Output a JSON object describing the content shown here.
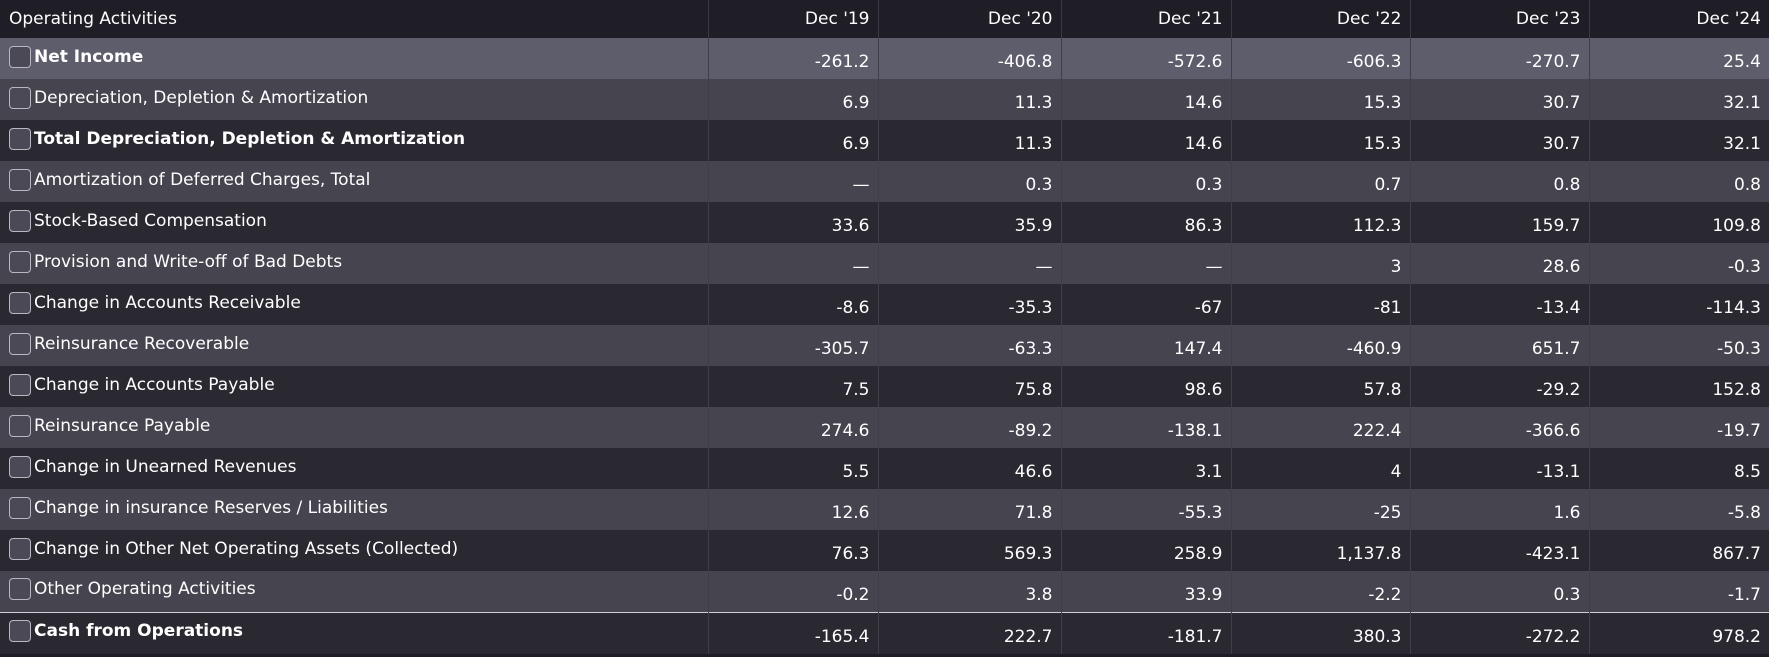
{
  "header": {
    "section_title": "Operating Activities",
    "periods": [
      "Dec '19",
      "Dec '20",
      "Dec '21",
      "Dec '22",
      "Dec '23",
      "Dec '24"
    ]
  },
  "rows": [
    {
      "label": "Net Income",
      "values": [
        "-261.2",
        "-406.8",
        "-572.6",
        "-606.3",
        "-270.7",
        "25.4"
      ]
    },
    {
      "label": "Depreciation, Depletion & Amortization",
      "values": [
        "6.9",
        "11.3",
        "14.6",
        "15.3",
        "30.7",
        "32.1"
      ]
    },
    {
      "label": "Total Depreciation, Depletion & Amortization",
      "values": [
        "6.9",
        "11.3",
        "14.6",
        "15.3",
        "30.7",
        "32.1"
      ]
    },
    {
      "label": "Amortization of Deferred Charges, Total",
      "values": [
        "—",
        "0.3",
        "0.3",
        "0.7",
        "0.8",
        "0.8"
      ]
    },
    {
      "label": "Stock-Based Compensation",
      "values": [
        "33.6",
        "35.9",
        "86.3",
        "112.3",
        "159.7",
        "109.8"
      ]
    },
    {
      "label": "Provision and Write-off of Bad Debts",
      "values": [
        "—",
        "—",
        "—",
        "3",
        "28.6",
        "-0.3"
      ]
    },
    {
      "label": "Change in Accounts Receivable",
      "values": [
        "-8.6",
        "-35.3",
        "-67",
        "-81",
        "-13.4",
        "-114.3"
      ]
    },
    {
      "label": "Reinsurance Recoverable",
      "values": [
        "-305.7",
        "-63.3",
        "147.4",
        "-460.9",
        "651.7",
        "-50.3"
      ]
    },
    {
      "label": "Change in Accounts Payable",
      "values": [
        "7.5",
        "75.8",
        "98.6",
        "57.8",
        "-29.2",
        "152.8"
      ]
    },
    {
      "label": "Reinsurance Payable",
      "values": [
        "274.6",
        "-89.2",
        "-138.1",
        "222.4",
        "-366.6",
        "-19.7"
      ]
    },
    {
      "label": "Change in Unearned Revenues",
      "values": [
        "5.5",
        "46.6",
        "3.1",
        "4",
        "-13.1",
        "8.5"
      ]
    },
    {
      "label": "Change in insurance Reserves / Liabilities",
      "values": [
        "12.6",
        "71.8",
        "-55.3",
        "-25",
        "1.6",
        "-5.8"
      ]
    },
    {
      "label": "Change in Other Net Operating Assets (Collected)",
      "values": [
        "76.3",
        "569.3",
        "258.9",
        "1,137.8",
        "-423.1",
        "867.7"
      ]
    },
    {
      "label": "Other Operating Activities",
      "values": [
        "-0.2",
        "3.8",
        "33.9",
        "-2.2",
        "0.3",
        "-1.7"
      ]
    },
    {
      "label": "Cash from Operations",
      "values": [
        "-165.4",
        "222.7",
        "-181.7",
        "380.3",
        "-272.2",
        "978.2"
      ]
    }
  ]
}
